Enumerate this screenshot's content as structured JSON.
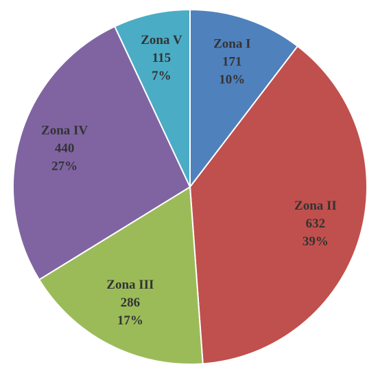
{
  "chart_data": {
    "type": "pie",
    "categories": [
      "Zona I",
      "Zona II",
      "Zona III",
      "Zona IV",
      "Zona V"
    ],
    "values": [
      171,
      632,
      286,
      440,
      115
    ],
    "percent_labels": [
      "10%",
      "39%",
      "17%",
      "27%",
      "7%"
    ],
    "colors": [
      "#4f81bd",
      "#c0504d",
      "#9bbb59",
      "#8064a2",
      "#4bacc6"
    ]
  }
}
